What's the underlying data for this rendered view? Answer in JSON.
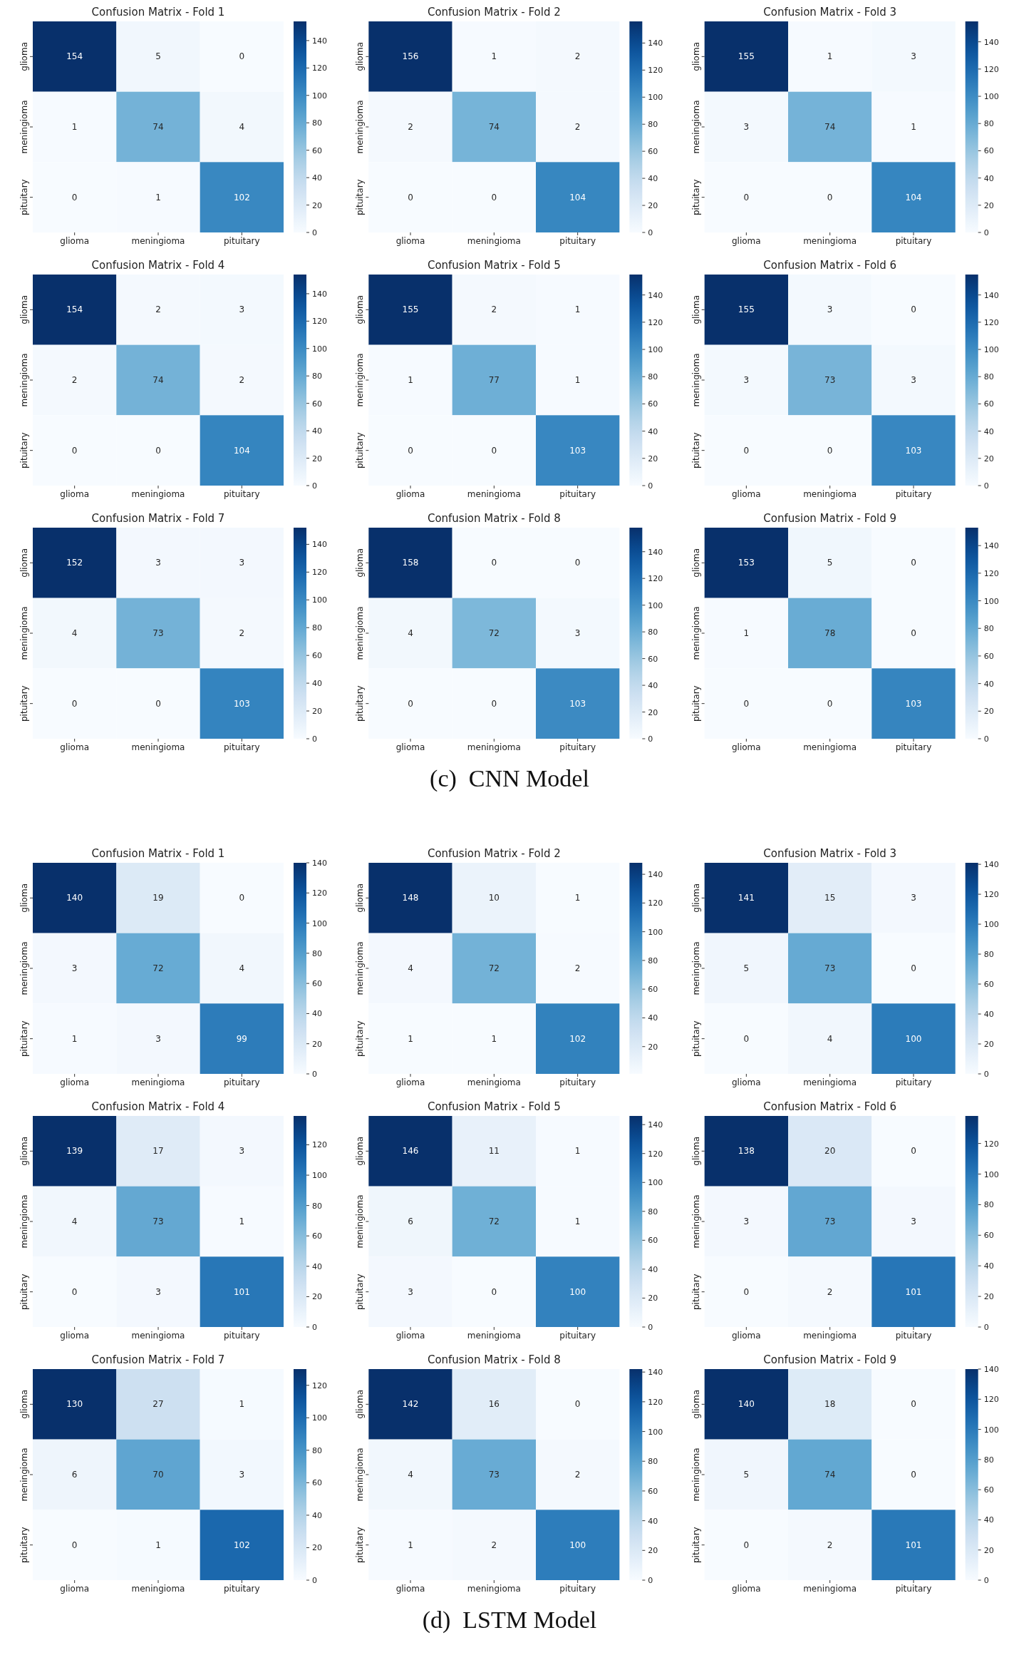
{
  "chart_data": [
    {
      "type": "heatmap",
      "title": "Confusion Matrix - Fold 1",
      "categories": [
        "glioma",
        "meningioma",
        "pituitary"
      ],
      "y_categories": [
        "glioma",
        "meningioma",
        "pituitary"
      ],
      "cells": [
        [
          154,
          5,
          0
        ],
        [
          1,
          74,
          4
        ],
        [
          0,
          1,
          102
        ]
      ],
      "clim": [
        0,
        154
      ],
      "cticks": [
        0,
        20,
        40,
        60,
        80,
        100,
        120,
        140
      ],
      "data_labels": true
    },
    {
      "type": "heatmap",
      "title": "Confusion Matrix - Fold 2",
      "categories": [
        "glioma",
        "meningioma",
        "pituitary"
      ],
      "y_categories": [
        "glioma",
        "meningioma",
        "pituitary"
      ],
      "cells": [
        [
          156,
          1,
          2
        ],
        [
          2,
          74,
          2
        ],
        [
          0,
          0,
          104
        ]
      ],
      "clim": [
        0,
        156
      ],
      "cticks": [
        0,
        20,
        40,
        60,
        80,
        100,
        120,
        140
      ],
      "data_labels": true
    },
    {
      "type": "heatmap",
      "title": "Confusion Matrix - Fold 3",
      "categories": [
        "glioma",
        "meningioma",
        "pituitary"
      ],
      "y_categories": [
        "glioma",
        "meningioma",
        "pituitary"
      ],
      "cells": [
        [
          155,
          1,
          3
        ],
        [
          3,
          74,
          1
        ],
        [
          0,
          0,
          104
        ]
      ],
      "clim": [
        0,
        155
      ],
      "cticks": [
        0,
        20,
        40,
        60,
        80,
        100,
        120,
        140
      ],
      "data_labels": true
    },
    {
      "type": "heatmap",
      "title": "Confusion Matrix - Fold 4",
      "categories": [
        "glioma",
        "meningioma",
        "pituitary"
      ],
      "y_categories": [
        "glioma",
        "meningioma",
        "pituitary"
      ],
      "cells": [
        [
          154,
          2,
          3
        ],
        [
          2,
          74,
          2
        ],
        [
          0,
          0,
          104
        ]
      ],
      "clim": [
        0,
        154
      ],
      "cticks": [
        0,
        20,
        40,
        60,
        80,
        100,
        120,
        140
      ],
      "data_labels": true
    },
    {
      "type": "heatmap",
      "title": "Confusion Matrix - Fold 5",
      "categories": [
        "glioma",
        "meningioma",
        "pituitary"
      ],
      "y_categories": [
        "glioma",
        "meningioma",
        "pituitary"
      ],
      "cells": [
        [
          155,
          2,
          1
        ],
        [
          1,
          77,
          1
        ],
        [
          0,
          0,
          103
        ]
      ],
      "clim": [
        0,
        155
      ],
      "cticks": [
        0,
        20,
        40,
        60,
        80,
        100,
        120,
        140
      ],
      "data_labels": true
    },
    {
      "type": "heatmap",
      "title": "Confusion Matrix - Fold 6",
      "categories": [
        "glioma",
        "meningioma",
        "pituitary"
      ],
      "y_categories": [
        "glioma",
        "meningioma",
        "pituitary"
      ],
      "cells": [
        [
          155,
          3,
          0
        ],
        [
          3,
          73,
          3
        ],
        [
          0,
          0,
          103
        ]
      ],
      "clim": [
        0,
        155
      ],
      "cticks": [
        0,
        20,
        40,
        60,
        80,
        100,
        120,
        140
      ],
      "data_labels": true
    },
    {
      "type": "heatmap",
      "title": "Confusion Matrix - Fold 7",
      "categories": [
        "glioma",
        "meningioma",
        "pituitary"
      ],
      "y_categories": [
        "glioma",
        "meningioma",
        "pituitary"
      ],
      "cells": [
        [
          152,
          3,
          3
        ],
        [
          4,
          73,
          2
        ],
        [
          0,
          0,
          103
        ]
      ],
      "clim": [
        0,
        152
      ],
      "cticks": [
        0,
        20,
        40,
        60,
        80,
        100,
        120,
        140
      ],
      "data_labels": true
    },
    {
      "type": "heatmap",
      "title": "Confusion Matrix - Fold 8",
      "categories": [
        "glioma",
        "meningioma",
        "pituitary"
      ],
      "y_categories": [
        "glioma",
        "meningioma",
        "pituitary"
      ],
      "cells": [
        [
          158,
          0,
          0
        ],
        [
          4,
          72,
          3
        ],
        [
          0,
          0,
          103
        ]
      ],
      "clim": [
        0,
        158
      ],
      "cticks": [
        0,
        20,
        40,
        60,
        80,
        100,
        120,
        140
      ],
      "data_labels": true
    },
    {
      "type": "heatmap",
      "title": "Confusion Matrix - Fold 9",
      "categories": [
        "glioma",
        "meningioma",
        "pituitary"
      ],
      "y_categories": [
        "glioma",
        "meningioma",
        "pituitary"
      ],
      "cells": [
        [
          153,
          5,
          0
        ],
        [
          1,
          78,
          0
        ],
        [
          0,
          0,
          103
        ]
      ],
      "clim": [
        0,
        153
      ],
      "cticks": [
        0,
        20,
        40,
        60,
        80,
        100,
        120,
        140
      ],
      "data_labels": true,
      "annotations": [
        "(c)  CNN Model"
      ]
    },
    {
      "type": "heatmap",
      "title": "Confusion Matrix - Fold 1",
      "categories": [
        "glioma",
        "meningioma",
        "pituitary"
      ],
      "y_categories": [
        "glioma",
        "meningioma",
        "pituitary"
      ],
      "cells": [
        [
          140,
          19,
          0
        ],
        [
          3,
          72,
          4
        ],
        [
          1,
          3,
          99
        ]
      ],
      "clim": [
        0,
        140
      ],
      "cticks": [
        0,
        20,
        40,
        60,
        80,
        100,
        120,
        140
      ],
      "data_labels": true
    },
    {
      "type": "heatmap",
      "title": "Confusion Matrix - Fold 2",
      "categories": [
        "glioma",
        "meningioma",
        "pituitary"
      ],
      "y_categories": [
        "glioma",
        "meningioma",
        "pituitary"
      ],
      "cells": [
        [
          148,
          10,
          1
        ],
        [
          4,
          72,
          2
        ],
        [
          1,
          1,
          102
        ]
      ],
      "clim": [
        1,
        148
      ],
      "cticks": [
        20,
        40,
        60,
        80,
        100,
        120,
        140
      ],
      "data_labels": true
    },
    {
      "type": "heatmap",
      "title": "Confusion Matrix - Fold 3",
      "categories": [
        "glioma",
        "meningioma",
        "pituitary"
      ],
      "y_categories": [
        "glioma",
        "meningioma",
        "pituitary"
      ],
      "cells": [
        [
          141,
          15,
          3
        ],
        [
          5,
          73,
          0
        ],
        [
          0,
          4,
          100
        ]
      ],
      "clim": [
        0,
        141
      ],
      "cticks": [
        0,
        20,
        40,
        60,
        80,
        100,
        120,
        140
      ],
      "data_labels": true
    },
    {
      "type": "heatmap",
      "title": "Confusion Matrix - Fold 4",
      "categories": [
        "glioma",
        "meningioma",
        "pituitary"
      ],
      "y_categories": [
        "glioma",
        "meningioma",
        "pituitary"
      ],
      "cells": [
        [
          139,
          17,
          3
        ],
        [
          4,
          73,
          1
        ],
        [
          0,
          3,
          101
        ]
      ],
      "clim": [
        0,
        139
      ],
      "cticks": [
        0,
        20,
        40,
        60,
        80,
        100,
        120
      ],
      "data_labels": true
    },
    {
      "type": "heatmap",
      "title": "Confusion Matrix - Fold 5",
      "categories": [
        "glioma",
        "meningioma",
        "pituitary"
      ],
      "y_categories": [
        "glioma",
        "meningioma",
        "pituitary"
      ],
      "cells": [
        [
          146,
          11,
          1
        ],
        [
          6,
          72,
          1
        ],
        [
          3,
          0,
          100
        ]
      ],
      "clim": [
        0,
        146
      ],
      "cticks": [
        0,
        20,
        40,
        60,
        80,
        100,
        120,
        140
      ],
      "data_labels": true
    },
    {
      "type": "heatmap",
      "title": "Confusion Matrix - Fold 6",
      "categories": [
        "glioma",
        "meningioma",
        "pituitary"
      ],
      "y_categories": [
        "glioma",
        "meningioma",
        "pituitary"
      ],
      "cells": [
        [
          138,
          20,
          0
        ],
        [
          3,
          73,
          3
        ],
        [
          0,
          2,
          101
        ]
      ],
      "clim": [
        0,
        138
      ],
      "cticks": [
        0,
        20,
        40,
        60,
        80,
        100,
        120
      ],
      "data_labels": true
    },
    {
      "type": "heatmap",
      "title": "Confusion Matrix - Fold 7",
      "categories": [
        "glioma",
        "meningioma",
        "pituitary"
      ],
      "y_categories": [
        "glioma",
        "meningioma",
        "pituitary"
      ],
      "cells": [
        [
          130,
          27,
          1
        ],
        [
          6,
          70,
          3
        ],
        [
          0,
          1,
          102
        ]
      ],
      "clim": [
        0,
        130
      ],
      "cticks": [
        0,
        20,
        40,
        60,
        80,
        100,
        120
      ],
      "data_labels": true
    },
    {
      "type": "heatmap",
      "title": "Confusion Matrix - Fold 8",
      "categories": [
        "glioma",
        "meningioma",
        "pituitary"
      ],
      "y_categories": [
        "glioma",
        "meningioma",
        "pituitary"
      ],
      "cells": [
        [
          142,
          16,
          0
        ],
        [
          4,
          73,
          2
        ],
        [
          1,
          2,
          100
        ]
      ],
      "clim": [
        0,
        142
      ],
      "cticks": [
        0,
        20,
        40,
        60,
        80,
        100,
        120,
        140
      ],
      "data_labels": true
    },
    {
      "type": "heatmap",
      "title": "Confusion Matrix - Fold 9",
      "categories": [
        "glioma",
        "meningioma",
        "pituitary"
      ],
      "y_categories": [
        "glioma",
        "meningioma",
        "pituitary"
      ],
      "cells": [
        [
          140,
          18,
          0
        ],
        [
          5,
          74,
          0
        ],
        [
          0,
          2,
          101
        ]
      ],
      "clim": [
        0,
        140
      ],
      "cticks": [
        0,
        20,
        40,
        60,
        80,
        100,
        120,
        140
      ],
      "data_labels": true,
      "annotations": [
        "(d)  LSTM Model"
      ]
    }
  ]
}
